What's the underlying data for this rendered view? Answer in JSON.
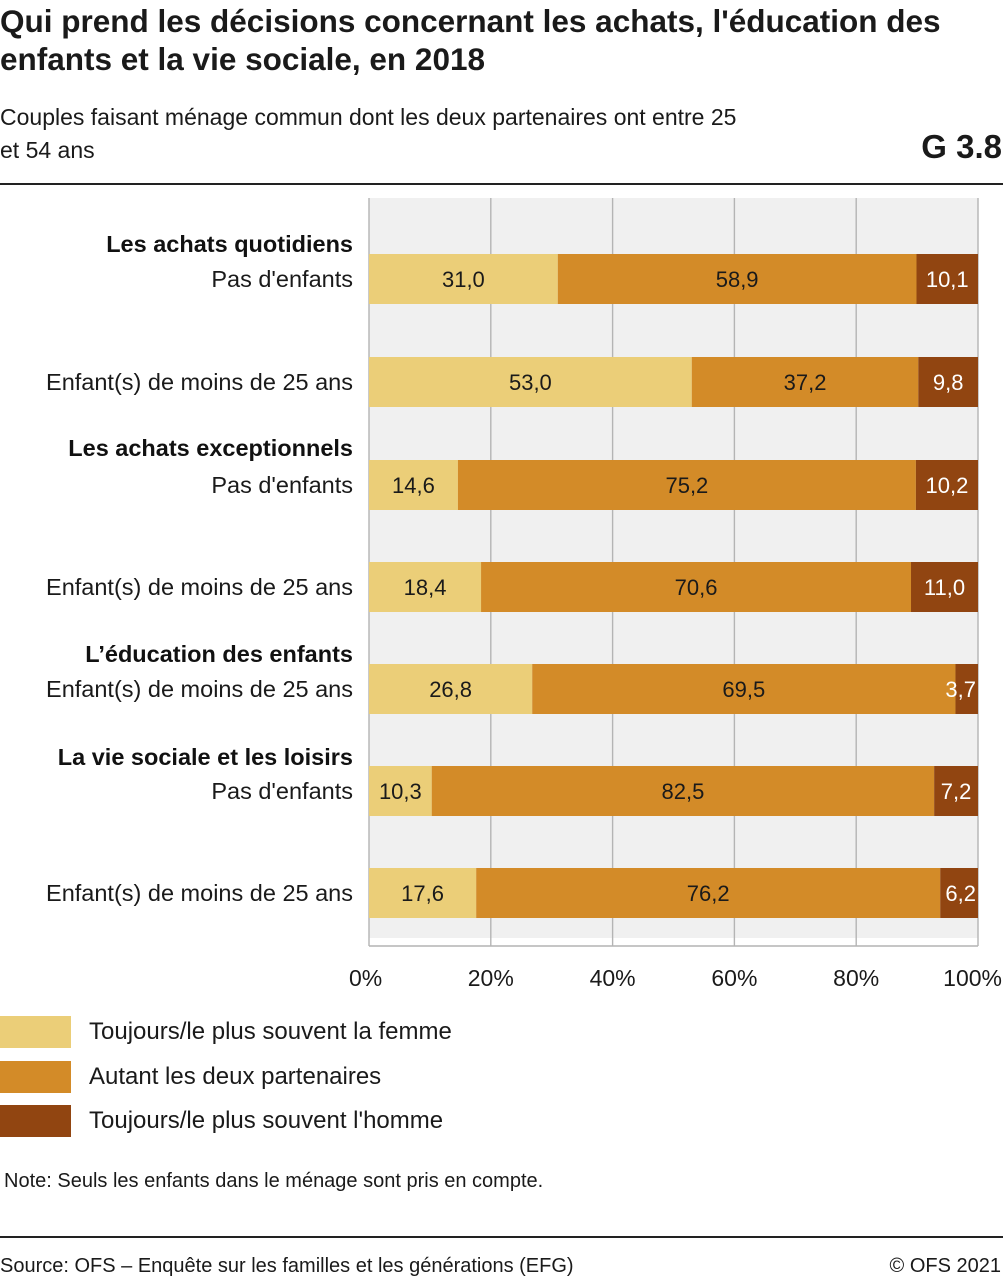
{
  "header": {
    "title": "Qui prend les décisions concernant les achats, l'éducation des enfants et la vie sociale, en 2018",
    "subtitle": "Couples faisant ménage commun dont les deux partenaires ont entre 25 et 54 ans",
    "code": "G 3.8"
  },
  "colors": {
    "femme": "#ebce78",
    "deux": "#d38b28",
    "homme": "#914511",
    "plot_bg": "#f0f0f0",
    "grid": "#b4b4b4"
  },
  "chart_data": {
    "type": "bar",
    "orientation": "horizontal",
    "stacked": true,
    "groups": [
      {
        "label": "Les achats quotidiens",
        "rows": [
          0,
          1
        ]
      },
      {
        "label": "Les achats exceptionnels",
        "rows": [
          2,
          3
        ]
      },
      {
        "label": "L’éducation des enfants",
        "rows": [
          4
        ]
      },
      {
        "label": "La vie sociale et les loisirs",
        "rows": [
          5,
          6
        ]
      }
    ],
    "categories": [
      "Pas d'enfants",
      "Enfant(s) de moins de 25 ans",
      "Pas d'enfants",
      "Enfant(s) de moins de 25 ans",
      "Enfant(s) de moins de 25 ans",
      "Pas d'enfants",
      "Enfant(s) de moins de 25 ans"
    ],
    "series": [
      {
        "name": "Toujours/le plus souvent la femme",
        "values": [
          31.0,
          53.0,
          14.6,
          18.4,
          26.8,
          10.3,
          17.6
        ],
        "labels": [
          "31,0",
          "53,0",
          "14,6",
          "18,4",
          "26,8",
          "10,3",
          "17,6"
        ]
      },
      {
        "name": "Autant les deux partenaires",
        "values": [
          58.9,
          37.2,
          75.2,
          70.6,
          69.5,
          82.5,
          76.2
        ],
        "labels": [
          "58,9",
          "37,2",
          "75,2",
          "70,6",
          "69,5",
          "82,5",
          "76,2"
        ]
      },
      {
        "name": "Toujours/le plus souvent l'homme",
        "values": [
          10.1,
          9.8,
          10.2,
          11.0,
          3.7,
          7.2,
          6.2
        ],
        "labels": [
          "10,1",
          "9,8",
          "10,2",
          "11,0",
          "3,7",
          "7,2",
          "6,2"
        ]
      }
    ],
    "xlim": [
      0,
      100
    ],
    "xticks": [
      0,
      20,
      40,
      60,
      80,
      100
    ],
    "xtick_labels": [
      "0%",
      "20%",
      "40%",
      "60%",
      "80%",
      "100%"
    ],
    "grid": true,
    "legend_position": "bottom-left"
  },
  "legend": [
    {
      "label": "Toujours/le plus souvent la femme",
      "color": "#ebce78"
    },
    {
      "label": "Autant les deux partenaires",
      "color": "#d38b28"
    },
    {
      "label": "Toujours/le plus souvent l'homme",
      "color": "#914511"
    }
  ],
  "footer": {
    "note": "Note: Seuls les enfants dans le ménage sont pris en compte.",
    "source": "Source: OFS – Enquête sur les familles et les générations (EFG)",
    "copyright": "© OFS 2021"
  }
}
